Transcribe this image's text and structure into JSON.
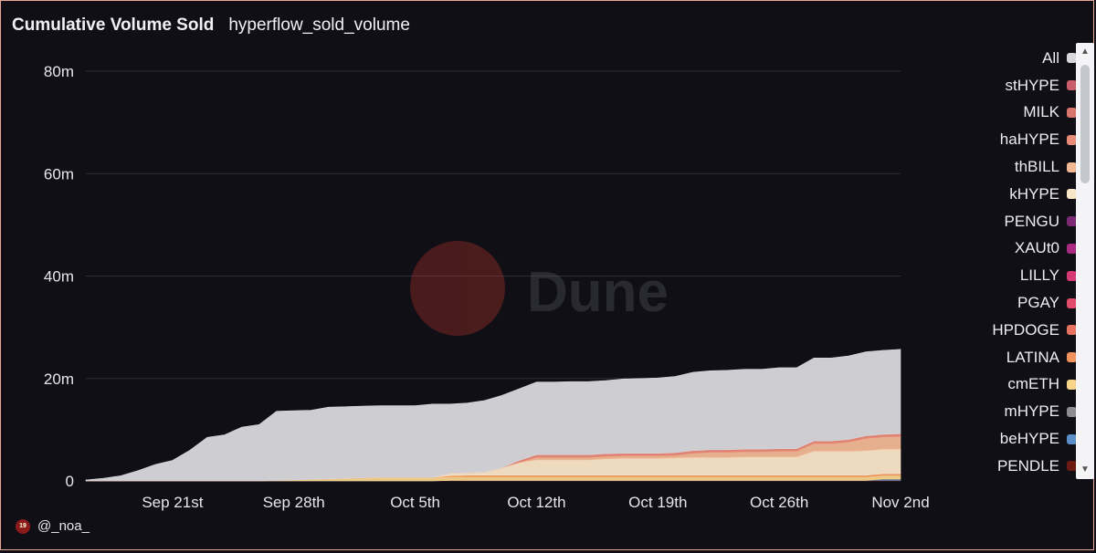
{
  "header": {
    "title": "Cumulative Volume Sold",
    "subtitle": "hyperflow_sold_volume"
  },
  "footer": {
    "badge": "19",
    "author": "@_noa_"
  },
  "watermark": "Dune",
  "legend": {
    "items": [
      {
        "label": "All",
        "color": "#d8d8dc"
      },
      {
        "label": "stHYPE",
        "color": "#c95d6a"
      },
      {
        "label": "MILK",
        "color": "#d9746b"
      },
      {
        "label": "haHYPE",
        "color": "#ea8a78"
      },
      {
        "label": "thBILL",
        "color": "#f2b894"
      },
      {
        "label": "kHYPE",
        "color": "#fae6c8"
      },
      {
        "label": "PENGU",
        "color": "#7b2a73"
      },
      {
        "label": "XAUt0",
        "color": "#a92a80"
      },
      {
        "label": "LILLY",
        "color": "#d63876"
      },
      {
        "label": "PGAY",
        "color": "#e24d6b"
      },
      {
        "label": "HPDOGE",
        "color": "#e7725f"
      },
      {
        "label": "LATINA",
        "color": "#f0935c"
      },
      {
        "label": "cmETH",
        "color": "#f8d48a"
      },
      {
        "label": "mHYPE",
        "color": "#8e8e92"
      },
      {
        "label": "beHYPE",
        "color": "#5b8ec8"
      },
      {
        "label": "PENDLE",
        "color": "#6e1a14"
      }
    ]
  },
  "chart_data": {
    "type": "area",
    "stacked": true,
    "x_unit": "date",
    "x": [
      "2025-09-16",
      "2025-09-17",
      "2025-09-18",
      "2025-09-19",
      "2025-09-20",
      "2025-09-21",
      "2025-09-22",
      "2025-09-23",
      "2025-09-24",
      "2025-09-25",
      "2025-09-26",
      "2025-09-27",
      "2025-09-28",
      "2025-09-29",
      "2025-09-30",
      "2025-10-01",
      "2025-10-02",
      "2025-10-03",
      "2025-10-04",
      "2025-10-05",
      "2025-10-06",
      "2025-10-07",
      "2025-10-08",
      "2025-10-09",
      "2025-10-10",
      "2025-10-11",
      "2025-10-12",
      "2025-10-13",
      "2025-10-14",
      "2025-10-15",
      "2025-10-16",
      "2025-10-17",
      "2025-10-18",
      "2025-10-19",
      "2025-10-20",
      "2025-10-21",
      "2025-10-22",
      "2025-10-23",
      "2025-10-24",
      "2025-10-25",
      "2025-10-26",
      "2025-10-27",
      "2025-10-28",
      "2025-10-29",
      "2025-10-30",
      "2025-10-31",
      "2025-11-01",
      "2025-11-02"
    ],
    "xticks": [
      "Sep 21st",
      "Sep 28th",
      "Oct 5th",
      "Oct 12th",
      "Oct 19th",
      "Oct 26th",
      "Nov 2nd"
    ],
    "xtick_values": [
      "2025-09-21",
      "2025-09-28",
      "2025-10-05",
      "2025-10-12",
      "2025-10-19",
      "2025-10-26",
      "2025-11-02"
    ],
    "yticks": [
      "0",
      "20m",
      "40m",
      "60m",
      "80m"
    ],
    "ytick_values": [
      0,
      20,
      40,
      60,
      80
    ],
    "ylim": [
      0,
      80
    ],
    "y_unit": "millions",
    "grid": true,
    "legend_position": "right",
    "series": [
      {
        "name": "PENDLE",
        "color": "#6e1a14",
        "values": [
          0,
          0,
          0,
          0,
          0,
          0,
          0,
          0,
          0,
          0,
          0,
          0,
          0,
          0,
          0,
          0,
          0,
          0,
          0,
          0,
          0,
          0.1,
          0.1,
          0.1,
          0.1,
          0.1,
          0.1,
          0.1,
          0.1,
          0.1,
          0.1,
          0.1,
          0.1,
          0.1,
          0.1,
          0.1,
          0.1,
          0.1,
          0.1,
          0.1,
          0.1,
          0.1,
          0.1,
          0.1,
          0.1,
          0.1,
          0.1,
          0.1
        ]
      },
      {
        "name": "beHYPE",
        "color": "#5b8ec8",
        "values": [
          0,
          0,
          0,
          0,
          0,
          0,
          0,
          0,
          0,
          0,
          0,
          0,
          0,
          0,
          0,
          0,
          0,
          0,
          0,
          0,
          0,
          0,
          0,
          0,
          0,
          0,
          0,
          0,
          0,
          0,
          0,
          0,
          0,
          0,
          0,
          0,
          0,
          0,
          0,
          0,
          0,
          0,
          0,
          0,
          0,
          0,
          0.1,
          0.1
        ]
      },
      {
        "name": "mHYPE",
        "color": "#8e8e92",
        "values": [
          0,
          0,
          0,
          0,
          0,
          0,
          0,
          0,
          0,
          0,
          0,
          0,
          0,
          0,
          0,
          0,
          0,
          0,
          0,
          0,
          0,
          0,
          0,
          0,
          0,
          0,
          0,
          0,
          0,
          0,
          0,
          0,
          0,
          0,
          0,
          0,
          0,
          0,
          0,
          0,
          0,
          0,
          0,
          0,
          0,
          0,
          0.2,
          0.2
        ]
      },
      {
        "name": "cmETH",
        "color": "#f8d48a",
        "values": [
          0,
          0,
          0,
          0,
          0,
          0,
          0,
          0,
          0,
          0,
          0,
          0.1,
          0.2,
          0.3,
          0.4,
          0.5,
          0.6,
          0.7,
          0.7,
          0.7,
          0.7,
          0.7,
          0.7,
          0.7,
          0.7,
          0.7,
          0.7,
          0.7,
          0.7,
          0.7,
          0.7,
          0.7,
          0.7,
          0.7,
          0.7,
          0.7,
          0.7,
          0.7,
          0.7,
          0.7,
          0.7,
          0.7,
          0.7,
          0.7,
          0.7,
          0.7,
          0.7,
          0.7
        ]
      },
      {
        "name": "LATINA",
        "color": "#f0935c",
        "values": [
          0,
          0,
          0,
          0,
          0,
          0,
          0,
          0,
          0,
          0,
          0,
          0,
          0,
          0,
          0,
          0,
          0,
          0,
          0,
          0,
          0,
          0.2,
          0.3,
          0.3,
          0.3,
          0.3,
          0.3,
          0.3,
          0.3,
          0.3,
          0.3,
          0.3,
          0.3,
          0.3,
          0.3,
          0.3,
          0.3,
          0.3,
          0.3,
          0.3,
          0.3,
          0.3,
          0.3,
          0.3,
          0.3,
          0.3,
          0.3,
          0.3
        ]
      },
      {
        "name": "HPDOGE",
        "color": "#e7725f",
        "values": [
          0,
          0,
          0,
          0,
          0,
          0,
          0,
          0,
          0,
          0,
          0,
          0,
          0,
          0,
          0,
          0,
          0,
          0,
          0,
          0,
          0,
          0,
          0,
          0,
          0,
          0,
          0,
          0,
          0,
          0,
          0,
          0,
          0,
          0,
          0,
          0,
          0,
          0,
          0,
          0,
          0,
          0,
          0,
          0,
          0,
          0,
          0,
          0
        ]
      },
      {
        "name": "PGAY",
        "color": "#e24d6b",
        "values": [
          0,
          0,
          0,
          0,
          0,
          0,
          0,
          0,
          0,
          0,
          0,
          0,
          0,
          0,
          0,
          0,
          0,
          0,
          0,
          0,
          0,
          0,
          0,
          0,
          0,
          0,
          0,
          0,
          0,
          0,
          0,
          0,
          0,
          0,
          0,
          0,
          0,
          0,
          0,
          0,
          0,
          0,
          0,
          0,
          0,
          0,
          0,
          0
        ]
      },
      {
        "name": "LILLY",
        "color": "#d63876",
        "values": [
          0,
          0,
          0,
          0,
          0,
          0,
          0,
          0,
          0,
          0,
          0,
          0,
          0,
          0,
          0,
          0,
          0,
          0,
          0,
          0,
          0,
          0,
          0,
          0,
          0,
          0,
          0,
          0,
          0,
          0,
          0,
          0,
          0,
          0,
          0,
          0,
          0,
          0,
          0,
          0,
          0,
          0,
          0,
          0,
          0,
          0,
          0,
          0
        ]
      },
      {
        "name": "XAUt0",
        "color": "#a92a80",
        "values": [
          0,
          0,
          0,
          0,
          0,
          0,
          0,
          0,
          0,
          0,
          0,
          0,
          0,
          0,
          0,
          0,
          0,
          0,
          0,
          0,
          0,
          0,
          0,
          0,
          0,
          0,
          0,
          0,
          0,
          0,
          0,
          0,
          0,
          0,
          0,
          0,
          0,
          0,
          0,
          0,
          0,
          0,
          0,
          0,
          0,
          0,
          0,
          0
        ]
      },
      {
        "name": "PENGU",
        "color": "#7b2a73",
        "values": [
          0,
          0,
          0,
          0,
          0,
          0,
          0,
          0,
          0,
          0,
          0,
          0,
          0,
          0,
          0,
          0,
          0,
          0,
          0,
          0,
          0,
          0,
          0,
          0,
          0,
          0,
          0,
          0,
          0,
          0,
          0,
          0,
          0,
          0,
          0,
          0,
          0,
          0,
          0,
          0,
          0,
          0,
          0,
          0,
          0,
          0,
          0,
          0
        ]
      },
      {
        "name": "kHYPE",
        "color": "#fae6c8",
        "values": [
          0,
          0,
          0,
          0,
          0,
          0,
          0,
          0,
          0,
          0,
          0,
          0,
          0,
          0,
          0,
          0,
          0,
          0,
          0,
          0,
          0,
          0.5,
          0.5,
          0.6,
          1.5,
          2.5,
          3,
          3,
          3,
          3,
          3.2,
          3.3,
          3.3,
          3.3,
          3.4,
          3.5,
          3.5,
          3.5,
          3.6,
          3.6,
          3.6,
          3.6,
          4.7,
          4.7,
          4.7,
          4.8,
          4.8,
          4.8
        ]
      },
      {
        "name": "thBILL",
        "color": "#f2b894",
        "values": [
          0,
          0,
          0,
          0,
          0,
          0,
          0,
          0,
          0,
          0,
          0,
          0,
          0,
          0,
          0,
          0,
          0,
          0,
          0,
          0,
          0,
          0,
          0,
          0,
          0,
          0,
          0.5,
          0.5,
          0.5,
          0.5,
          0.5,
          0.5,
          0.5,
          0.5,
          0.5,
          0.8,
          1,
          1,
          1,
          1,
          1.1,
          1.1,
          1.5,
          1.5,
          1.8,
          2.4,
          2.4,
          2.5
        ]
      },
      {
        "name": "haHYPE",
        "color": "#ea8a78",
        "values": [
          0,
          0,
          0,
          0,
          0,
          0,
          0,
          0,
          0,
          0,
          0,
          0,
          0,
          0,
          0,
          0,
          0,
          0,
          0,
          0,
          0,
          0,
          0,
          0,
          0,
          0.4,
          0.5,
          0.5,
          0.5,
          0.5,
          0.5,
          0.5,
          0.5,
          0.5,
          0.5,
          0.5,
          0.5,
          0.5,
          0.5,
          0.5,
          0.5,
          0.5,
          0.5,
          0.5,
          0.5,
          0.5,
          0.5,
          0.5
        ]
      },
      {
        "name": "MILK",
        "color": "#d9746b",
        "values": [
          0,
          0,
          0,
          0,
          0,
          0,
          0,
          0,
          0,
          0,
          0,
          0,
          0,
          0,
          0,
          0,
          0,
          0,
          0,
          0,
          0,
          0,
          0,
          0,
          0,
          0,
          0,
          0,
          0,
          0,
          0,
          0,
          0,
          0,
          0,
          0,
          0,
          0,
          0,
          0,
          0,
          0,
          0,
          0,
          0,
          0,
          0,
          0
        ]
      },
      {
        "name": "stHYPE",
        "color": "#c95d6a",
        "values": [
          0,
          0,
          0,
          0,
          0,
          0,
          0,
          0,
          0,
          0,
          0,
          0,
          0,
          0,
          0,
          0,
          0,
          0,
          0,
          0,
          0,
          0,
          0,
          0,
          0,
          0,
          0,
          0,
          0,
          0,
          0,
          0,
          0,
          0,
          0,
          0,
          0,
          0,
          0,
          0,
          0,
          0,
          0,
          0,
          0,
          0,
          0,
          0
        ]
      },
      {
        "name": "All",
        "color": "#d8d8dc",
        "values": [
          0.2,
          0.5,
          1,
          2,
          3.2,
          4,
          6,
          8.5,
          9,
          10.5,
          11,
          13.5,
          13.5,
          13.5,
          14,
          14,
          14,
          14,
          14,
          14,
          14.3,
          13.5,
          13.6,
          14,
          14.1,
          14,
          14.2,
          14.2,
          14.3,
          14.3,
          14.3,
          14.5,
          14.6,
          14.7,
          14.9,
          15.3,
          15.4,
          15.5,
          15.6,
          15.6,
          15.8,
          15.8,
          16.2,
          16.2,
          16.3,
          16.4,
          16.4,
          16.5
        ]
      }
    ]
  }
}
